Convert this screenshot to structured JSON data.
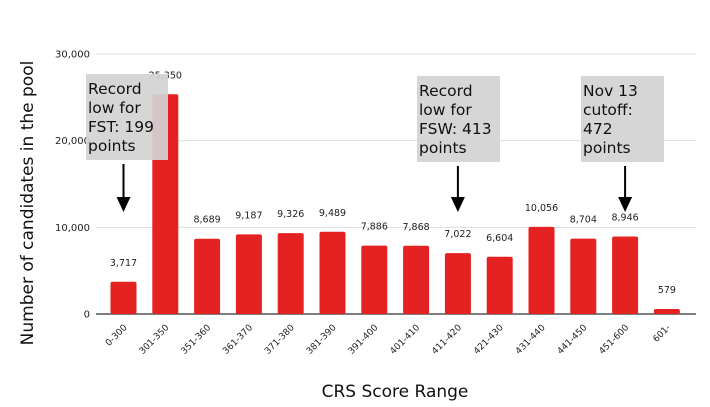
{
  "chart_data": {
    "type": "bar",
    "xlabel": "CRS Score Range",
    "ylabel": "Number of candidates in the pool",
    "categories": [
      "0-300",
      "301-350",
      "351-360",
      "361-370",
      "371-380",
      "381-390",
      "391-400",
      "401-410",
      "411-420",
      "421-430",
      "431-440",
      "441-450",
      "451-600",
      "601-"
    ],
    "values": [
      3717,
      25350,
      8689,
      9187,
      9326,
      9489,
      7886,
      7868,
      7022,
      6604,
      10056,
      8704,
      8946,
      579
    ],
    "value_labels": [
      "3,717",
      "25,350",
      "8,689",
      "9,187",
      "9,326",
      "9,489",
      "7,886",
      "7,868",
      "7,022",
      "6,604",
      "10,056",
      "8,704",
      "8,946",
      "579"
    ],
    "ylim": [
      0,
      30000
    ],
    "yticks": [
      0,
      10000,
      20000,
      30000
    ],
    "ytick_labels": [
      "0",
      "10,000",
      "20,000",
      "30,000"
    ],
    "grid": true,
    "bar_color": "#e52222",
    "annotations": [
      {
        "category": "0-300",
        "lines": [
          "Record",
          "low for",
          "FST: 199",
          "points"
        ]
      },
      {
        "category": "411-420",
        "lines": [
          "Record",
          "low for",
          "FSW: 413",
          "points"
        ]
      },
      {
        "category": "451-600",
        "lines": [
          "Nov 13",
          "cutoff:",
          "472",
          "points"
        ]
      }
    ]
  }
}
